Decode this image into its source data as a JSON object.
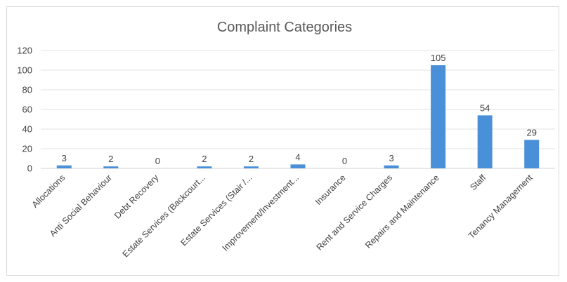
{
  "chart_data": {
    "type": "bar",
    "title": "Complaint Categories",
    "categories": [
      "Allocations",
      "Anti Social Behaviour",
      "Debt Recovery",
      "Estate Services (Backcourt...",
      "Estate Services (Stair /...",
      "Improvement/Investment...",
      "Insurance",
      "Rent and Service Charges",
      "Repairs and Maintenance",
      "Staff",
      "Tenancy Management"
    ],
    "values": [
      3,
      2,
      0,
      2,
      2,
      4,
      0,
      3,
      105,
      54,
      29
    ],
    "ylim": [
      0,
      120
    ],
    "yticks": [
      0,
      20,
      40,
      60,
      80,
      100,
      120
    ],
    "xlabel": "",
    "ylabel": "",
    "grid": true,
    "legend": "none",
    "colors": {
      "bar": "#4a90d9",
      "grid": "#e3e3e3",
      "text": "#404040",
      "title": "#595959"
    }
  }
}
